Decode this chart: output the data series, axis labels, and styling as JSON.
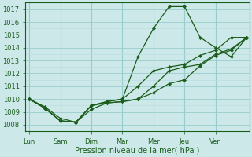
{
  "xlabel": "Pression niveau de la mer( hPa )",
  "bg_color": "#cce8e8",
  "grid_major_color": "#99cccc",
  "grid_minor_color": "#b8dddd",
  "line_color": "#1a5c1a",
  "ylim": [
    1007.5,
    1017.5
  ],
  "yticks": [
    1008,
    1009,
    1010,
    1011,
    1012,
    1013,
    1014,
    1015,
    1016,
    1017
  ],
  "day_labels": [
    "Lun",
    "Sam",
    "Dim",
    "Mar",
    "Mer",
    "Jeu",
    "Ven"
  ],
  "day_positions": [
    0,
    24,
    48,
    72,
    96,
    120,
    144
  ],
  "xlim": [
    -3,
    170
  ],
  "series": [
    {
      "x": [
        0,
        12,
        24,
        36,
        48,
        60,
        72,
        84,
        96,
        108,
        120,
        132,
        144,
        156,
        168
      ],
      "y": [
        1010.0,
        1009.3,
        1008.3,
        1008.2,
        1009.5,
        1009.8,
        1010.0,
        1013.3,
        1015.5,
        1017.2,
        1017.2,
        1014.8,
        1014.0,
        1013.3,
        1014.8
      ]
    },
    {
      "x": [
        0,
        12,
        24,
        36,
        48,
        60,
        72,
        84,
        96,
        108,
        120,
        132,
        144,
        156,
        168
      ],
      "y": [
        1010.0,
        1009.3,
        1008.3,
        1008.2,
        1009.5,
        1009.8,
        1010.0,
        1011.0,
        1012.2,
        1012.5,
        1012.7,
        1013.4,
        1013.8,
        1014.8,
        1014.8
      ]
    },
    {
      "x": [
        0,
        12,
        24,
        36,
        48,
        60,
        72,
        84,
        96,
        108,
        120,
        132,
        144,
        156,
        168
      ],
      "y": [
        1010.0,
        1009.3,
        1008.3,
        1008.2,
        1009.5,
        1009.7,
        1009.8,
        1010.0,
        1011.0,
        1012.2,
        1012.5,
        1012.7,
        1013.5,
        1013.9,
        1014.8
      ]
    },
    {
      "x": [
        0,
        12,
        24,
        36,
        48,
        60,
        72,
        84,
        96,
        108,
        120,
        132,
        144,
        156,
        168
      ],
      "y": [
        1010.0,
        1009.4,
        1008.5,
        1008.2,
        1009.2,
        1009.7,
        1009.8,
        1010.0,
        1010.5,
        1011.2,
        1011.5,
        1012.6,
        1013.4,
        1013.8,
        1014.8
      ]
    }
  ]
}
